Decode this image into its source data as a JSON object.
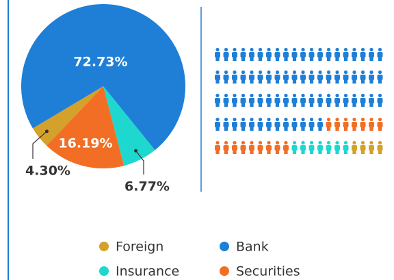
{
  "chart_data": {
    "type": "pie",
    "series": [
      {
        "name": "Foreign",
        "color": "#d4a12a",
        "values": [
          4.3
        ],
        "value_labels": [
          "4.30%"
        ]
      },
      {
        "name": "Bank",
        "color": "#1f7fd6",
        "values": [
          72.73
        ],
        "value_labels": [
          "72.73%"
        ]
      },
      {
        "name": "Insurance",
        "color": "#1ed8cf",
        "values": [
          6.77
        ],
        "value_labels": [
          "6.77%"
        ]
      },
      {
        "name": "Securities",
        "color": "#f26e25",
        "values": [
          16.19
        ],
        "value_labels": [
          "16.19%"
        ]
      }
    ]
  }
}
